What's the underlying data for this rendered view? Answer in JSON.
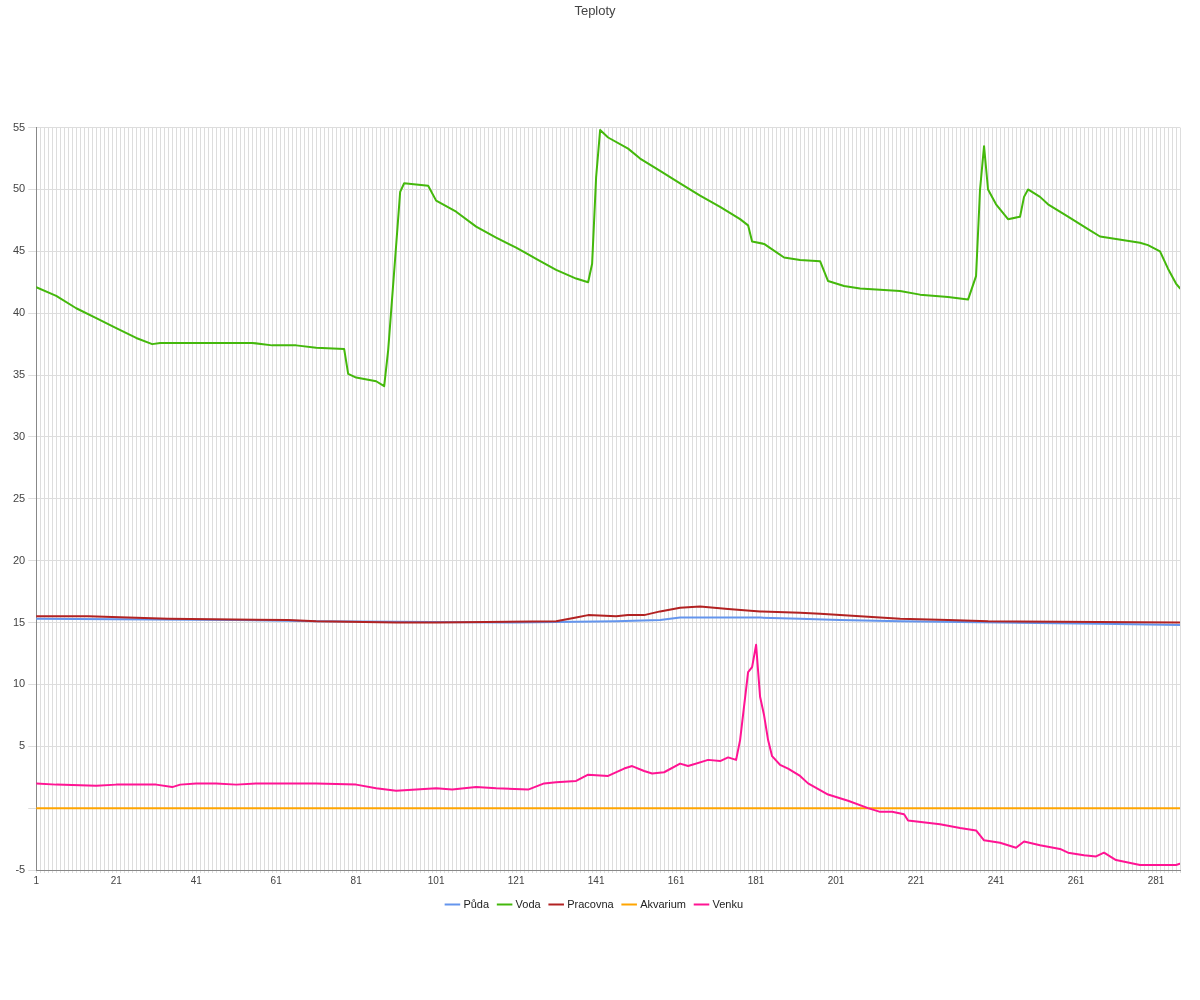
{
  "chart_data": {
    "type": "line",
    "title": "Teploty",
    "marker": "none",
    "grid": true,
    "legend": "bottom",
    "xlim": [
      1,
      287
    ],
    "xticks": [
      1,
      {
        "value": 2,
        "label": null
      },
      {
        "value": 3,
        "label": null
      },
      {
        "value": 4,
        "label": null
      },
      {
        "value": 5,
        "label": null
      },
      {
        "value": 6,
        "label": null
      },
      {
        "value": 7,
        "label": null
      },
      {
        "value": 8,
        "label": null
      },
      {
        "value": 9,
        "label": null
      },
      {
        "value": 10,
        "label": null
      },
      {
        "value": 11,
        "label": null
      },
      {
        "value": 12,
        "label": null
      },
      {
        "value": 13,
        "label": null
      },
      {
        "value": 14,
        "label": null
      },
      {
        "value": 15,
        "label": null
      },
      {
        "value": 16,
        "label": null
      },
      {
        "value": 17,
        "label": null
      },
      {
        "value": 18,
        "label": null
      },
      {
        "value": 19,
        "label": null
      },
      {
        "value": 20,
        "label": null
      },
      21,
      {
        "value": 22,
        "label": null
      },
      {
        "value": 23,
        "label": null
      },
      {
        "value": 24,
        "label": null
      },
      {
        "value": 25,
        "label": null
      },
      {
        "value": 26,
        "label": null
      },
      {
        "value": 27,
        "label": null
      },
      {
        "value": 28,
        "label": null
      },
      {
        "value": 29,
        "label": null
      },
      {
        "value": 30,
        "label": null
      },
      {
        "value": 31,
        "label": null
      },
      {
        "value": 32,
        "label": null
      },
      {
        "value": 33,
        "label": null
      },
      {
        "value": 34,
        "label": null
      },
      {
        "value": 35,
        "label": null
      },
      {
        "value": 36,
        "label": null
      },
      {
        "value": 37,
        "label": null
      },
      {
        "value": 38,
        "label": null
      },
      {
        "value": 39,
        "label": null
      },
      {
        "value": 40,
        "label": null
      },
      41,
      {
        "value": 42,
        "label": null
      },
      {
        "value": 43,
        "label": null
      },
      {
        "value": 44,
        "label": null
      },
      {
        "value": 45,
        "label": null
      },
      {
        "value": 46,
        "label": null
      },
      {
        "value": 47,
        "label": null
      },
      {
        "value": 48,
        "label": null
      },
      {
        "value": 49,
        "label": null
      },
      {
        "value": 50,
        "label": null
      },
      {
        "value": 51,
        "label": null
      },
      {
        "value": 52,
        "label": null
      },
      {
        "value": 53,
        "label": null
      },
      {
        "value": 54,
        "label": null
      },
      {
        "value": 55,
        "label": null
      },
      {
        "value": 56,
        "label": null
      },
      {
        "value": 57,
        "label": null
      },
      {
        "value": 58,
        "label": null
      },
      {
        "value": 59,
        "label": null
      },
      {
        "value": 60,
        "label": null
      },
      61,
      {
        "value": 62,
        "label": null
      },
      {
        "value": 63,
        "label": null
      },
      {
        "value": 64,
        "label": null
      },
      {
        "value": 65,
        "label": null
      },
      {
        "value": 66,
        "label": null
      },
      {
        "value": 67,
        "label": null
      },
      {
        "value": 68,
        "label": null
      },
      {
        "value": 69,
        "label": null
      },
      {
        "value": 70,
        "label": null
      },
      {
        "value": 71,
        "label": null
      },
      {
        "value": 72,
        "label": null
      },
      {
        "value": 73,
        "label": null
      },
      {
        "value": 74,
        "label": null
      },
      {
        "value": 75,
        "label": null
      },
      {
        "value": 76,
        "label": null
      },
      {
        "value": 77,
        "label": null
      },
      {
        "value": 78,
        "label": null
      },
      {
        "value": 79,
        "label": null
      },
      {
        "value": 80,
        "label": null
      },
      81,
      {
        "value": 82,
        "label": null
      },
      {
        "value": 83,
        "label": null
      },
      {
        "value": 84,
        "label": null
      },
      {
        "value": 85,
        "label": null
      },
      {
        "value": 86,
        "label": null
      },
      {
        "value": 87,
        "label": null
      },
      {
        "value": 88,
        "label": null
      },
      {
        "value": 89,
        "label": null
      },
      {
        "value": 90,
        "label": null
      },
      {
        "value": 91,
        "label": null
      },
      {
        "value": 92,
        "label": null
      },
      {
        "value": 93,
        "label": null
      },
      {
        "value": 94,
        "label": null
      },
      {
        "value": 95,
        "label": null
      },
      {
        "value": 96,
        "label": null
      },
      {
        "value": 97,
        "label": null
      },
      {
        "value": 98,
        "label": null
      },
      {
        "value": 99,
        "label": null
      },
      {
        "value": 100,
        "label": null
      },
      101,
      {
        "value": 102,
        "label": null
      },
      {
        "value": 103,
        "label": null
      },
      {
        "value": 104,
        "label": null
      },
      {
        "value": 105,
        "label": null
      },
      {
        "value": 106,
        "label": null
      },
      {
        "value": 107,
        "label": null
      },
      {
        "value": 108,
        "label": null
      },
      {
        "value": 109,
        "label": null
      },
      {
        "value": 110,
        "label": null
      },
      {
        "value": 111,
        "label": null
      },
      {
        "value": 112,
        "label": null
      },
      {
        "value": 113,
        "label": null
      },
      {
        "value": 114,
        "label": null
      },
      {
        "value": 115,
        "label": null
      },
      {
        "value": 116,
        "label": null
      },
      {
        "value": 117,
        "label": null
      },
      {
        "value": 118,
        "label": null
      },
      {
        "value": 119,
        "label": null
      },
      {
        "value": 120,
        "label": null
      },
      121,
      {
        "value": 122,
        "label": null
      },
      {
        "value": 123,
        "label": null
      },
      {
        "value": 124,
        "label": null
      },
      {
        "value": 125,
        "label": null
      },
      {
        "value": 126,
        "label": null
      },
      {
        "value": 127,
        "label": null
      },
      {
        "value": 128,
        "label": null
      },
      {
        "value": 129,
        "label": null
      },
      {
        "value": 130,
        "label": null
      },
      {
        "value": 131,
        "label": null
      },
      {
        "value": 132,
        "label": null
      },
      {
        "value": 133,
        "label": null
      },
      {
        "value": 134,
        "label": null
      },
      {
        "value": 135,
        "label": null
      },
      {
        "value": 136,
        "label": null
      },
      {
        "value": 137,
        "label": null
      },
      {
        "value": 138,
        "label": null
      },
      {
        "value": 139,
        "label": null
      },
      {
        "value": 140,
        "label": null
      },
      141,
      {
        "value": 142,
        "label": null
      },
      {
        "value": 143,
        "label": null
      },
      {
        "value": 144,
        "label": null
      },
      {
        "value": 145,
        "label": null
      },
      {
        "value": 146,
        "label": null
      },
      {
        "value": 147,
        "label": null
      },
      {
        "value": 148,
        "label": null
      },
      {
        "value": 149,
        "label": null
      },
      {
        "value": 150,
        "label": null
      },
      {
        "value": 151,
        "label": null
      },
      {
        "value": 152,
        "label": null
      },
      {
        "value": 153,
        "label": null
      },
      {
        "value": 154,
        "label": null
      },
      {
        "value": 155,
        "label": null
      },
      {
        "value": 156,
        "label": null
      },
      {
        "value": 157,
        "label": null
      },
      {
        "value": 158,
        "label": null
      },
      {
        "value": 159,
        "label": null
      },
      {
        "value": 160,
        "label": null
      },
      161,
      {
        "value": 162,
        "label": null
      },
      {
        "value": 163,
        "label": null
      },
      {
        "value": 164,
        "label": null
      },
      {
        "value": 165,
        "label": null
      },
      {
        "value": 166,
        "label": null
      },
      {
        "value": 167,
        "label": null
      },
      {
        "value": 168,
        "label": null
      },
      {
        "value": 169,
        "label": null
      },
      {
        "value": 170,
        "label": null
      },
      {
        "value": 171,
        "label": null
      },
      {
        "value": 172,
        "label": null
      },
      {
        "value": 173,
        "label": null
      },
      {
        "value": 174,
        "label": null
      },
      {
        "value": 175,
        "label": null
      },
      {
        "value": 176,
        "label": null
      },
      {
        "value": 177,
        "label": null
      },
      {
        "value": 178,
        "label": null
      },
      {
        "value": 179,
        "label": null
      },
      {
        "value": 180,
        "label": null
      },
      181,
      {
        "value": 182,
        "label": null
      },
      {
        "value": 183,
        "label": null
      },
      {
        "value": 184,
        "label": null
      },
      {
        "value": 185,
        "label": null
      },
      {
        "value": 186,
        "label": null
      },
      {
        "value": 187,
        "label": null
      },
      {
        "value": 188,
        "label": null
      },
      {
        "value": 189,
        "label": null
      },
      {
        "value": 190,
        "label": null
      },
      {
        "value": 191,
        "label": null
      },
      {
        "value": 192,
        "label": null
      },
      {
        "value": 193,
        "label": null
      },
      {
        "value": 194,
        "label": null
      },
      {
        "value": 195,
        "label": null
      },
      {
        "value": 196,
        "label": null
      },
      {
        "value": 197,
        "label": null
      },
      {
        "value": 198,
        "label": null
      },
      {
        "value": 199,
        "label": null
      },
      {
        "value": 200,
        "label": null
      },
      201,
      {
        "value": 202,
        "label": null
      },
      {
        "value": 203,
        "label": null
      },
      {
        "value": 204,
        "label": null
      },
      {
        "value": 205,
        "label": null
      },
      {
        "value": 206,
        "label": null
      },
      {
        "value": 207,
        "label": null
      },
      {
        "value": 208,
        "label": null
      },
      {
        "value": 209,
        "label": null
      },
      {
        "value": 210,
        "label": null
      },
      {
        "value": 211,
        "label": null
      },
      {
        "value": 212,
        "label": null
      },
      {
        "value": 213,
        "label": null
      },
      {
        "value": 214,
        "label": null
      },
      {
        "value": 215,
        "label": null
      },
      {
        "value": 216,
        "label": null
      },
      {
        "value": 217,
        "label": null
      },
      {
        "value": 218,
        "label": null
      },
      {
        "value": 219,
        "label": null
      },
      {
        "value": 220,
        "label": null
      },
      221,
      {
        "value": 222,
        "label": null
      },
      {
        "value": 223,
        "label": null
      },
      {
        "value": 224,
        "label": null
      },
      {
        "value": 225,
        "label": null
      },
      {
        "value": 226,
        "label": null
      },
      {
        "value": 227,
        "label": null
      },
      {
        "value": 228,
        "label": null
      },
      {
        "value": 229,
        "label": null
      },
      {
        "value": 230,
        "label": null
      },
      {
        "value": 231,
        "label": null
      },
      {
        "value": 232,
        "label": null
      },
      {
        "value": 233,
        "label": null
      },
      {
        "value": 234,
        "label": null
      },
      {
        "value": 235,
        "label": null
      },
      {
        "value": 236,
        "label": null
      },
      {
        "value": 237,
        "label": null
      },
      {
        "value": 238,
        "label": null
      },
      {
        "value": 239,
        "label": null
      },
      {
        "value": 240,
        "label": null
      },
      241,
      {
        "value": 242,
        "label": null
      },
      {
        "value": 243,
        "label": null
      },
      {
        "value": 244,
        "label": null
      },
      {
        "value": 245,
        "label": null
      },
      {
        "value": 246,
        "label": null
      },
      {
        "value": 247,
        "label": null
      },
      {
        "value": 248,
        "label": null
      },
      {
        "value": 249,
        "label": null
      },
      {
        "value": 250,
        "label": null
      },
      {
        "value": 251,
        "label": null
      },
      {
        "value": 252,
        "label": null
      },
      {
        "value": 253,
        "label": null
      },
      {
        "value": 254,
        "label": null
      },
      {
        "value": 255,
        "label": null
      },
      {
        "value": 256,
        "label": null
      },
      {
        "value": 257,
        "label": null
      },
      {
        "value": 258,
        "label": null
      },
      {
        "value": 259,
        "label": null
      },
      {
        "value": 260,
        "label": null
      },
      261,
      {
        "value": 262,
        "label": null
      },
      {
        "value": 263,
        "label": null
      },
      {
        "value": 264,
        "label": null
      },
      {
        "value": 265,
        "label": null
      },
      {
        "value": 266,
        "label": null
      },
      {
        "value": 267,
        "label": null
      },
      {
        "value": 268,
        "label": null
      },
      {
        "value": 269,
        "label": null
      },
      {
        "value": 270,
        "label": null
      },
      {
        "value": 271,
        "label": null
      },
      {
        "value": 272,
        "label": null
      },
      {
        "value": 273,
        "label": null
      },
      {
        "value": 274,
        "label": null
      },
      {
        "value": 275,
        "label": null
      },
      {
        "value": 276,
        "label": null
      },
      {
        "value": 277,
        "label": null
      },
      {
        "value": 278,
        "label": null
      },
      {
        "value": 279,
        "label": null
      },
      {
        "value": 280,
        "label": null
      },
      281,
      {
        "value": 282,
        "label": null
      },
      {
        "value": 283,
        "label": null
      },
      {
        "value": 284,
        "label": null
      },
      {
        "value": 285,
        "label": null
      },
      {
        "value": 286,
        "label": null
      },
      {
        "value": 287,
        "label": null
      }
    ],
    "ylim": [
      -5,
      55
    ],
    "yticks": [
      -5,
      {
        "value": 0,
        "label": null
      },
      5,
      10,
      15,
      20,
      25,
      30,
      35,
      40,
      45,
      50,
      55
    ],
    "series": [
      {
        "name": "Půda",
        "color": "#6495ed",
        "x": [
          1,
          51,
          71,
          121,
          146,
          157,
          162,
          182,
          192,
          202,
          217,
          242,
          267,
          287
        ],
        "values": [
          15.3,
          15.2,
          15.1,
          15.0,
          15.1,
          15.2,
          15.4,
          15.4,
          15.3,
          15.2,
          15.1,
          15.0,
          14.9,
          14.8
        ]
      },
      {
        "name": "Voda",
        "color": "#44b80c",
        "x": [
          1,
          6,
          11,
          16,
          21,
          26,
          30,
          32,
          55,
          60,
          66,
          71,
          78,
          79,
          81,
          86,
          88,
          89,
          91,
          92,
          93,
          96,
          99,
          101,
          106,
          111,
          116,
          121,
          126,
          131,
          136,
          139,
          140,
          141,
          142,
          144,
          149,
          152,
          157,
          162,
          167,
          172,
          177,
          179,
          180,
          183,
          188,
          192,
          197,
          199,
          203,
          207,
          217,
          222,
          229,
          234,
          236,
          237,
          238,
          239,
          241,
          244,
          247,
          248,
          249,
          252,
          254,
          259,
          264,
          267,
          271,
          277,
          279,
          282,
          284,
          286,
          287
        ],
        "values": [
          42.1,
          41.4,
          40.4,
          39.6,
          38.8,
          38.0,
          37.5,
          37.6,
          37.6,
          37.4,
          37.4,
          37.2,
          37.1,
          35.1,
          34.8,
          34.5,
          34.1,
          37.0,
          45.5,
          49.8,
          50.5,
          50.4,
          50.3,
          49.1,
          48.2,
          47.0,
          46.1,
          45.3,
          44.4,
          43.5,
          42.8,
          42.5,
          44,
          51,
          54.8,
          54.2,
          53.3,
          52.5,
          51.5,
          50.5,
          49.5,
          48.6,
          47.6,
          47.1,
          45.8,
          45.6,
          44.5,
          44.3,
          44.2,
          42.6,
          42.2,
          42.0,
          41.8,
          41.5,
          41.3,
          41.1,
          43,
          50,
          53.5,
          50,
          48.8,
          47.6,
          47.8,
          49.4,
          50,
          49.4,
          48.8,
          47.8,
          46.8,
          46.2,
          46.0,
          45.7,
          45.5,
          45,
          43.6,
          42.4,
          42.0
        ]
      },
      {
        "name": "Pracovna",
        "color": "#b22222",
        "x": [
          1,
          14,
          24,
          34,
          64,
          71,
          91,
          101,
          131,
          136,
          139,
          146,
          149,
          153,
          157,
          162,
          167,
          174,
          182,
          192,
          197,
          207,
          217,
          229,
          239,
          287
        ],
        "values": [
          15.5,
          15.5,
          15.4,
          15.3,
          15.2,
          15.1,
          15.0,
          15.0,
          15.1,
          15.4,
          15.6,
          15.5,
          15.6,
          15.6,
          15.9,
          16.2,
          16.3,
          16.1,
          15.9,
          15.8,
          15.7,
          15.5,
          15.3,
          15.2,
          15.1,
          15.0
        ]
      },
      {
        "name": "Akvarium",
        "color": "#ffa500",
        "x": [
          1,
          287
        ],
        "values": [
          0,
          0
        ]
      },
      {
        "name": "Venku",
        "color": "#ff1493",
        "x": [
          1,
          6,
          16,
          21,
          31,
          35,
          37,
          41,
          46,
          51,
          56,
          71,
          81,
          86,
          91,
          96,
          101,
          105,
          111,
          116,
          124,
          128,
          131,
          136,
          139,
          144,
          148,
          150,
          153,
          155,
          158,
          162,
          164,
          169,
          172,
          174,
          176,
          177,
          179,
          180,
          181,
          182,
          183,
          184,
          185,
          187,
          189,
          192,
          194,
          199,
          204,
          209,
          212,
          215,
          218,
          219,
          227,
          232,
          236,
          238,
          242,
          246,
          248,
          252,
          257,
          259,
          263,
          266,
          268,
          271,
          274,
          277,
          286,
          287
        ],
        "values": [
          2.0,
          1.9,
          1.8,
          1.9,
          1.9,
          1.7,
          1.9,
          2.0,
          2.0,
          1.9,
          2.0,
          2.0,
          1.9,
          1.6,
          1.4,
          1.5,
          1.6,
          1.5,
          1.7,
          1.6,
          1.5,
          2.0,
          2.1,
          2.2,
          2.7,
          2.6,
          3.2,
          3.4,
          3.0,
          2.8,
          2.9,
          3.6,
          3.4,
          3.9,
          3.8,
          4.1,
          3.9,
          5.5,
          11,
          11.4,
          13.2,
          9,
          7.5,
          5.5,
          4.2,
          3.5,
          3.2,
          2.6,
          2.0,
          1.1,
          0.6,
          0.0,
          -0.3,
          -0.3,
          -0.5,
          -1.0,
          -1.3,
          -1.6,
          -1.8,
          -2.6,
          -2.8,
          -3.2,
          -2.7,
          -3.0,
          -3.3,
          -3.6,
          -3.8,
          -3.9,
          -3.6,
          -4.2,
          -4.4,
          -4.6,
          -4.6,
          -4.5
        ]
      }
    ]
  }
}
